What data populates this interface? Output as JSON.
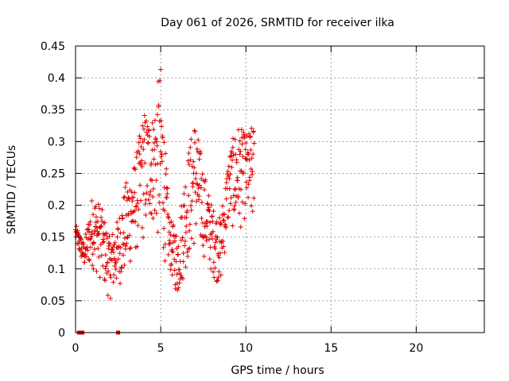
{
  "chart_data": {
    "type": "scatter",
    "title": "Day 061 of 2026, SRMTID for receiver ilka",
    "xlabel": "GPS time / hours",
    "ylabel": "SRMTID / TECUs",
    "xlim": [
      0,
      24
    ],
    "ylim": [
      0,
      0.45
    ],
    "xticks": [
      "0",
      "5",
      "10",
      "15",
      "20"
    ],
    "yticks": [
      "0",
      "0.05",
      "0.1",
      "0.15",
      "0.2",
      "0.25",
      "0.3",
      "0.35",
      "0.4",
      "0.45"
    ],
    "grid": true,
    "marker": "plus",
    "color": "#e00000",
    "zero_points_x": [
      0.2,
      0.4,
      2.5
    ],
    "envelope": [
      {
        "x": 0.0,
        "low": 0.14,
        "high": 0.17
      },
      {
        "x": 0.5,
        "low": 0.1,
        "high": 0.14
      },
      {
        "x": 1.0,
        "low": 0.1,
        "high": 0.22
      },
      {
        "x": 1.5,
        "low": 0.08,
        "high": 0.2
      },
      {
        "x": 2.0,
        "low": 0.05,
        "high": 0.15
      },
      {
        "x": 2.5,
        "low": 0.07,
        "high": 0.18
      },
      {
        "x": 3.0,
        "low": 0.09,
        "high": 0.24
      },
      {
        "x": 3.5,
        "low": 0.12,
        "high": 0.27
      },
      {
        "x": 4.0,
        "low": 0.14,
        "high": 0.35
      },
      {
        "x": 4.5,
        "low": 0.17,
        "high": 0.34
      },
      {
        "x": 5.0,
        "low": 0.12,
        "high": 0.42
      },
      {
        "x": 5.5,
        "low": 0.1,
        "high": 0.18
      },
      {
        "x": 6.0,
        "low": 0.05,
        "high": 0.16
      },
      {
        "x": 6.5,
        "low": 0.1,
        "high": 0.27
      },
      {
        "x": 7.0,
        "low": 0.13,
        "high": 0.34
      },
      {
        "x": 7.5,
        "low": 0.12,
        "high": 0.26
      },
      {
        "x": 8.0,
        "low": 0.09,
        "high": 0.2
      },
      {
        "x": 8.5,
        "low": 0.07,
        "high": 0.18
      },
      {
        "x": 9.0,
        "low": 0.17,
        "high": 0.28
      },
      {
        "x": 9.5,
        "low": 0.15,
        "high": 0.33
      },
      {
        "x": 10.0,
        "low": 0.18,
        "high": 0.31
      },
      {
        "x": 10.5,
        "low": 0.15,
        "high": 0.33
      }
    ]
  }
}
